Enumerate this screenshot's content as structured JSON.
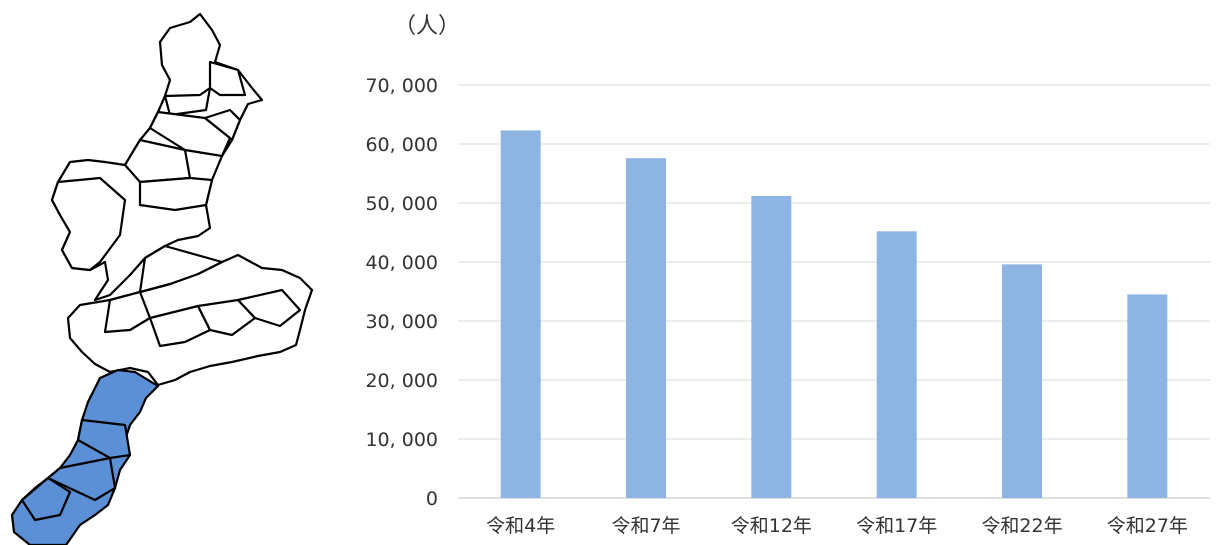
{
  "colors": {
    "bar": "#8eb4e3",
    "gridline": "#d9d9d9",
    "axis": "#bfbfbf",
    "map_highlight": "#5b8fd6",
    "map_stroke": "#000000",
    "map_fill": "#ffffff"
  },
  "map": {
    "icon": "mie-prefecture-map",
    "highlighted_region": "south"
  },
  "chart_data": {
    "type": "bar",
    "unit_label": "（人）",
    "categories": [
      "令和4年",
      "令和7年",
      "令和12年",
      "令和17年",
      "令和22年",
      "令和27年"
    ],
    "values": [
      62300,
      57600,
      51200,
      45200,
      39600,
      34500
    ],
    "ylim": [
      0,
      70000
    ],
    "yticks": [
      0,
      10000,
      20000,
      30000,
      40000,
      50000,
      60000,
      70000
    ],
    "ytick_labels": [
      "0",
      "10, 000",
      "20, 000",
      "30, 000",
      "40, 000",
      "50, 000",
      "60, 000",
      "70, 000"
    ],
    "grid": true,
    "legend": "none"
  }
}
